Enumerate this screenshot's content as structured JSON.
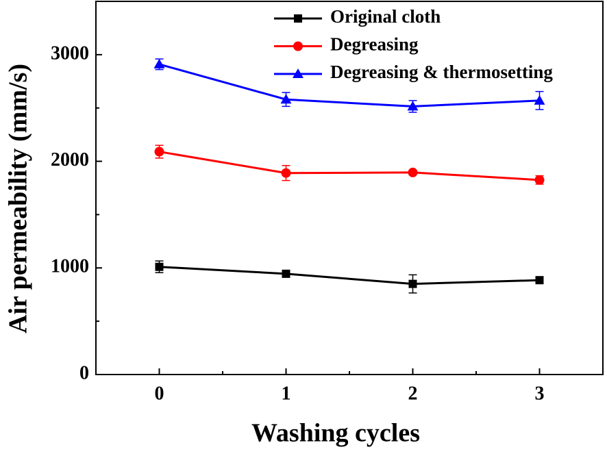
{
  "chart_data": {
    "type": "line",
    "x_label": "Washing cycles",
    "y_label": "Air permeability (mm/s)",
    "x": [
      0,
      1,
      2,
      3
    ],
    "xlim": [
      -0.5,
      3.5
    ],
    "xticks": [
      0,
      1,
      2,
      3
    ],
    "ylim": [
      0,
      3500
    ],
    "yticks": [
      0,
      1000,
      2000,
      3000
    ],
    "legend": "top-right",
    "series": [
      {
        "name": "Original cloth",
        "color": "#000000",
        "marker": "square",
        "values": [
          1010,
          945,
          850,
          885
        ],
        "errors": [
          55,
          20,
          85,
          20
        ]
      },
      {
        "name": "Degreasing",
        "color": "#ff0000",
        "marker": "circle",
        "values": [
          2090,
          1890,
          1895,
          1825
        ],
        "errors": [
          60,
          70,
          20,
          40
        ]
      },
      {
        "name": "Degreasing & thermosetting",
        "color": "#0000ff",
        "marker": "triangle",
        "values": [
          2910,
          2580,
          2515,
          2570
        ],
        "errors": [
          50,
          65,
          55,
          85
        ]
      }
    ]
  }
}
